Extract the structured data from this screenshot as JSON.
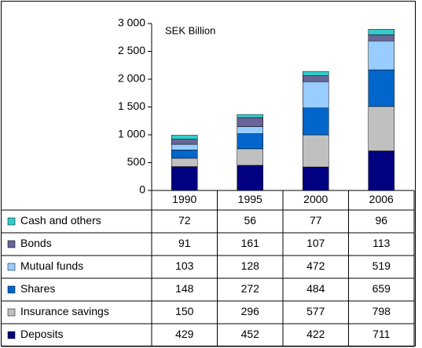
{
  "chart_data": {
    "type": "stacked_bar",
    "annotation": "SEK Billion",
    "categories": [
      "1990",
      "1995",
      "2000",
      "2006"
    ],
    "series": [
      {
        "name": "Deposits",
        "color": "#000080",
        "values": [
          429,
          452,
          422,
          711
        ]
      },
      {
        "name": "Insurance savings",
        "color": "#c0c0c0",
        "values": [
          150,
          296,
          577,
          798
        ]
      },
      {
        "name": "Shares",
        "color": "#0066cc",
        "values": [
          148,
          272,
          484,
          659
        ]
      },
      {
        "name": "Mutual funds",
        "color": "#99ccff",
        "values": [
          103,
          128,
          472,
          519
        ]
      },
      {
        "name": "Bonds",
        "color": "#666699",
        "values": [
          91,
          161,
          107,
          113
        ]
      },
      {
        "name": "Cash and others",
        "color": "#33cccc",
        "values": [
          72,
          56,
          77,
          96
        ]
      }
    ],
    "ylim": [
      0,
      3000
    ],
    "yticks": [
      0,
      500,
      {
        "value": 1000,
        "label": "1 000"
      },
      {
        "value": 1500,
        "label": "1 500"
      },
      {
        "value": 2000,
        "label": "2 000"
      },
      {
        "value": 2500,
        "label": "2 500"
      },
      {
        "value": 3000,
        "label": "3 000"
      }
    ],
    "grid": false
  }
}
